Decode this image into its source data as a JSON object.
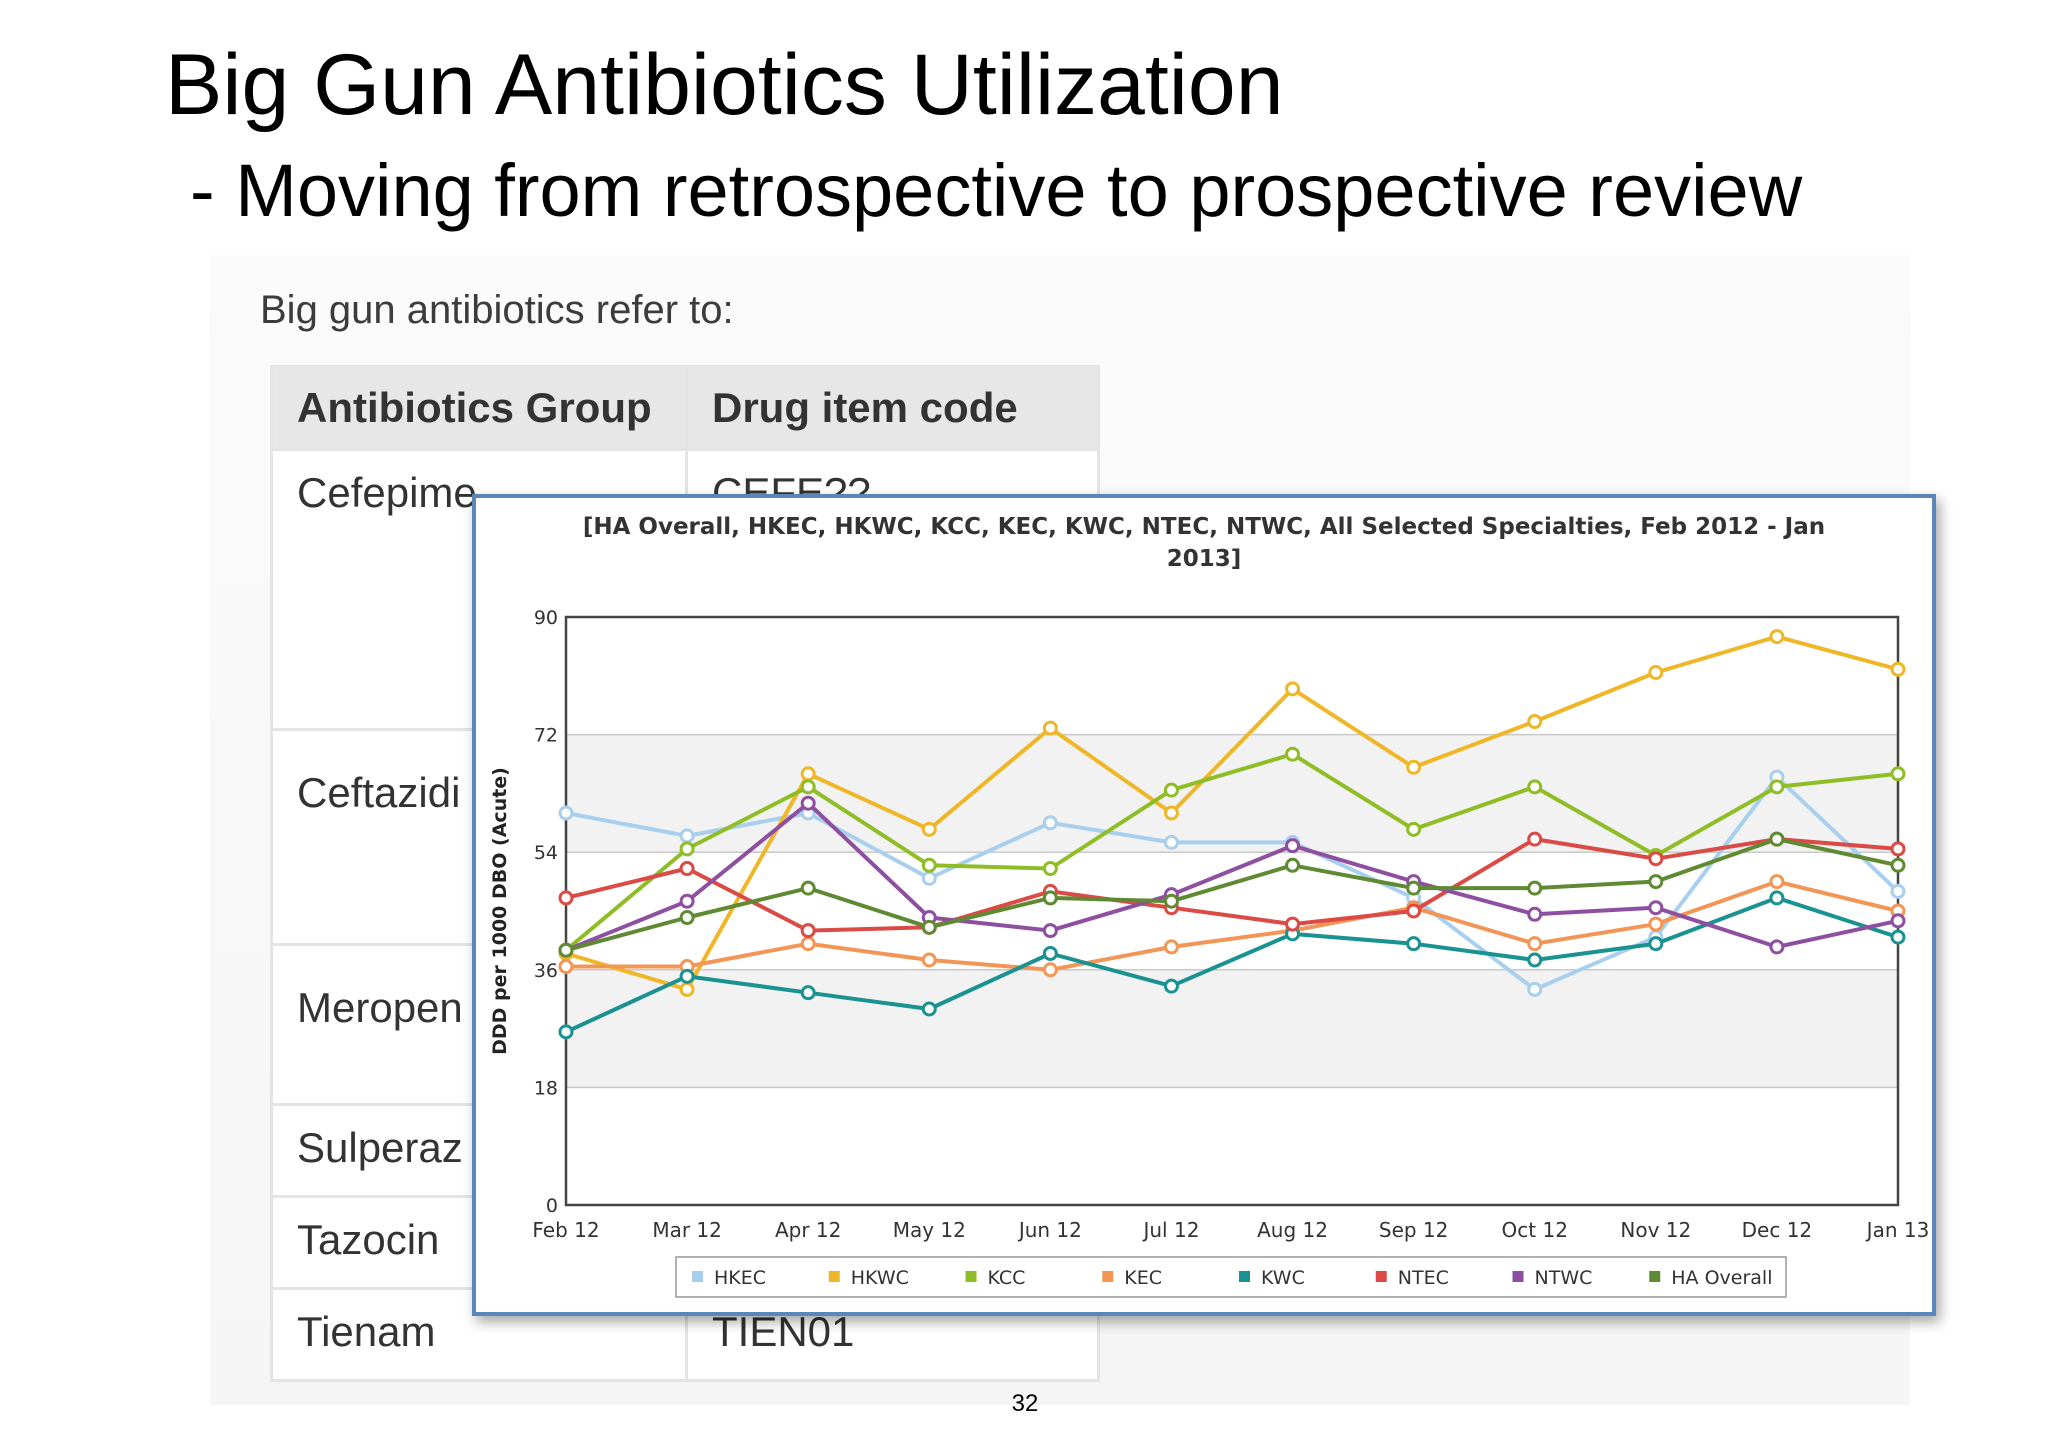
{
  "slide": {
    "title": "Big Gun Antibiotics Utilization",
    "subtitle": "- Moving from retrospective to prospective review",
    "page_number": "32"
  },
  "table": {
    "intro": "Big gun antibiotics refer to:",
    "headers": [
      "Antibiotics Group",
      "Drug item code"
    ],
    "rows": [
      [
        "Cefepime",
        "CEFE??"
      ],
      [
        "Ceftazidi",
        ""
      ],
      [
        "Meropen",
        ""
      ],
      [
        "Sulperaz",
        ""
      ],
      [
        "Tazocin",
        ""
      ],
      [
        "Tienam",
        "TIEN01"
      ]
    ]
  },
  "chart_data": {
    "type": "line",
    "title": "[HA Overall, HKEC, HKWC, KCC, KEC, KWC, NTEC, NTWC, All Selected Specialties, Feb 2012 - Jan 2013]",
    "title_lines": [
      "[HA Overall, HKEC, HKWC, KCC, KEC, KWC, NTEC, NTWC, All Selected Specialties, Feb 2012 - Jan",
      "2013]"
    ],
    "xlabel": "",
    "ylabel": "DDD per 1000 DBO (Acute)",
    "ylim": [
      0,
      90
    ],
    "yticks": [
      0,
      18,
      36,
      54,
      72,
      90
    ],
    "categories": [
      "Feb 12",
      "Mar 12",
      "Apr 12",
      "May 12",
      "Jun 12",
      "Jul 12",
      "Aug 12",
      "Sep 12",
      "Oct 12",
      "Nov 12",
      "Dec 12",
      "Jan 13"
    ],
    "grid": "horizontal",
    "band_fill": "#f2f2f2",
    "legend_position": "bottom",
    "series": [
      {
        "name": "HKEC",
        "color": "#a9cfee",
        "values": [
          60,
          56.5,
          60,
          50,
          58.5,
          55.5,
          55.5,
          47,
          33,
          41,
          65.5,
          48
        ]
      },
      {
        "name": "HKWC",
        "color": "#efb727",
        "values": [
          38.5,
          33,
          66,
          57.5,
          73,
          60,
          79,
          67,
          74,
          81.5,
          87,
          82
        ]
      },
      {
        "name": "KCC",
        "color": "#8fbd26",
        "values": [
          39,
          54.5,
          64,
          52,
          51.5,
          63.5,
          69,
          57.5,
          64,
          53.5,
          64,
          66
        ]
      },
      {
        "name": "KEC",
        "color": "#f39555",
        "values": [
          36.5,
          36.5,
          40,
          37.5,
          36,
          39.5,
          42,
          45.5,
          40,
          43,
          49.5,
          45
        ]
      },
      {
        "name": "KWC",
        "color": "#1a9291",
        "values": [
          26.5,
          35,
          32.5,
          30,
          38.5,
          33.5,
          41.5,
          40,
          37.5,
          40,
          47,
          41
        ]
      },
      {
        "name": "NTEC",
        "color": "#db4a45",
        "values": [
          47,
          51.5,
          42,
          42.5,
          48,
          45.5,
          43,
          45,
          56,
          53,
          56,
          54.5
        ]
      },
      {
        "name": "NTWC",
        "color": "#8e4fa0",
        "values": [
          39,
          46.5,
          61.5,
          44,
          42,
          47.5,
          55,
          49.5,
          44.5,
          45.5,
          39.5,
          43.5
        ]
      },
      {
        "name": "HA Overall",
        "color": "#5f8a33",
        "values": [
          39,
          44,
          48.5,
          42.5,
          47,
          46.5,
          52,
          48.5,
          48.5,
          49.5,
          56,
          52
        ]
      }
    ]
  }
}
